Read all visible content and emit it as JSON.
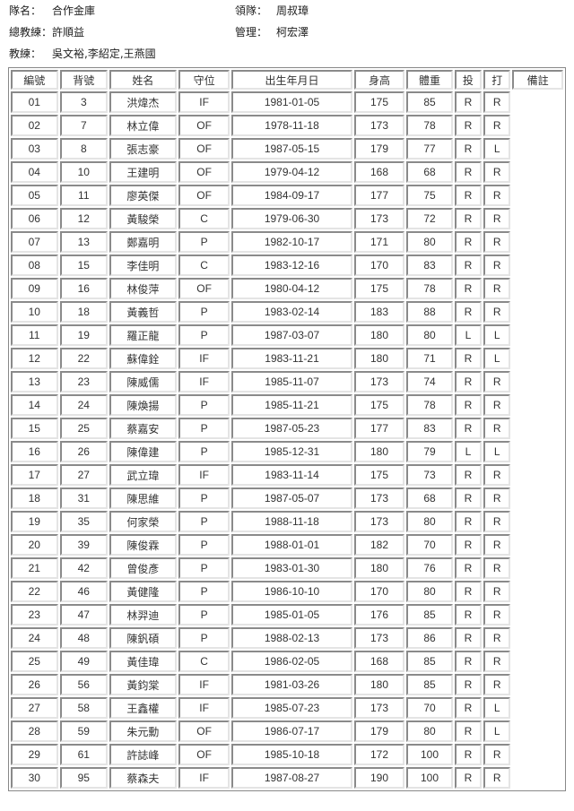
{
  "team_info": {
    "team_label": "隊名：",
    "team": "合作金庫",
    "leader_label": "領隊：",
    "leader": "周叔璋",
    "head_coach_label": "總教練：",
    "head_coach": "許順益",
    "manager_label": "管理：",
    "manager": "柯宏澤",
    "coach_label": "教練：",
    "coaches": "吳文裕,李紹定,王燕國"
  },
  "columns": [
    "編號",
    "背號",
    "姓名",
    "守位",
    "出生年月日",
    "身高",
    "體重",
    "投",
    "打",
    "備註"
  ],
  "rows": [
    [
      "01",
      "3",
      "洪煒杰",
      "IF",
      "1981-01-05",
      "175",
      "85",
      "R",
      "R"
    ],
    [
      "02",
      "7",
      "林立偉",
      "OF",
      "1978-11-18",
      "173",
      "78",
      "R",
      "R"
    ],
    [
      "03",
      "8",
      "張志豪",
      "OF",
      "1987-05-15",
      "179",
      "77",
      "R",
      "L"
    ],
    [
      "04",
      "10",
      "王建明",
      "OF",
      "1979-04-12",
      "168",
      "68",
      "R",
      "R"
    ],
    [
      "05",
      "11",
      "廖英傑",
      "OF",
      "1984-09-17",
      "177",
      "75",
      "R",
      "R"
    ],
    [
      "06",
      "12",
      "黃駿榮",
      "C",
      "1979-06-30",
      "173",
      "72",
      "R",
      "R"
    ],
    [
      "07",
      "13",
      "鄭嘉明",
      "P",
      "1982-10-17",
      "171",
      "80",
      "R",
      "R"
    ],
    [
      "08",
      "15",
      "李佳明",
      "C",
      "1983-12-16",
      "170",
      "83",
      "R",
      "R"
    ],
    [
      "09",
      "16",
      "林俊萍",
      "OF",
      "1980-04-12",
      "175",
      "78",
      "R",
      "R"
    ],
    [
      "10",
      "18",
      "黃義哲",
      "P",
      "1983-02-14",
      "183",
      "88",
      "R",
      "R"
    ],
    [
      "11",
      "19",
      "羅正龍",
      "P",
      "1987-03-07",
      "180",
      "80",
      "L",
      "L"
    ],
    [
      "12",
      "22",
      "蘇偉銓",
      "IF",
      "1983-11-21",
      "180",
      "71",
      "R",
      "L"
    ],
    [
      "13",
      "23",
      "陳威儒",
      "IF",
      "1985-11-07",
      "173",
      "74",
      "R",
      "R"
    ],
    [
      "14",
      "24",
      "陳煥揚",
      "P",
      "1985-11-21",
      "175",
      "78",
      "R",
      "R"
    ],
    [
      "15",
      "25",
      "蔡嘉安",
      "P",
      "1987-05-23",
      "177",
      "83",
      "R",
      "R"
    ],
    [
      "16",
      "26",
      "陳偉建",
      "P",
      "1985-12-31",
      "180",
      "79",
      "L",
      "L"
    ],
    [
      "17",
      "27",
      "武立瑋",
      "IF",
      "1983-11-14",
      "175",
      "73",
      "R",
      "R"
    ],
    [
      "18",
      "31",
      "陳思維",
      "P",
      "1987-05-07",
      "173",
      "68",
      "R",
      "R"
    ],
    [
      "19",
      "35",
      "何家榮",
      "P",
      "1988-11-18",
      "173",
      "80",
      "R",
      "R"
    ],
    [
      "20",
      "39",
      "陳俊霖",
      "P",
      "1988-01-01",
      "182",
      "70",
      "R",
      "R"
    ],
    [
      "21",
      "42",
      "曾俊彥",
      "P",
      "1983-01-30",
      "180",
      "76",
      "R",
      "R"
    ],
    [
      "22",
      "46",
      "黃健隆",
      "P",
      "1986-10-10",
      "170",
      "80",
      "R",
      "R"
    ],
    [
      "23",
      "47",
      "林羿迪",
      "P",
      "1985-01-05",
      "176",
      "85",
      "R",
      "R"
    ],
    [
      "24",
      "48",
      "陳釩碩",
      "P",
      "1988-02-13",
      "173",
      "86",
      "R",
      "R"
    ],
    [
      "25",
      "49",
      "黃佳瑋",
      "C",
      "1986-02-05",
      "168",
      "85",
      "R",
      "R"
    ],
    [
      "26",
      "56",
      "黃鈞棠",
      "IF",
      "1981-03-26",
      "180",
      "85",
      "R",
      "R"
    ],
    [
      "27",
      "58",
      "王鑫權",
      "IF",
      "1985-07-23",
      "173",
      "70",
      "R",
      "L"
    ],
    [
      "28",
      "59",
      "朱元勳",
      "OF",
      "1986-07-17",
      "179",
      "80",
      "R",
      "L"
    ],
    [
      "29",
      "61",
      "許誌峰",
      "OF",
      "1985-10-18",
      "172",
      "100",
      "R",
      "R"
    ],
    [
      "30",
      "95",
      "蔡森夫",
      "IF",
      "1987-08-27",
      "190",
      "100",
      "R",
      "R"
    ]
  ]
}
